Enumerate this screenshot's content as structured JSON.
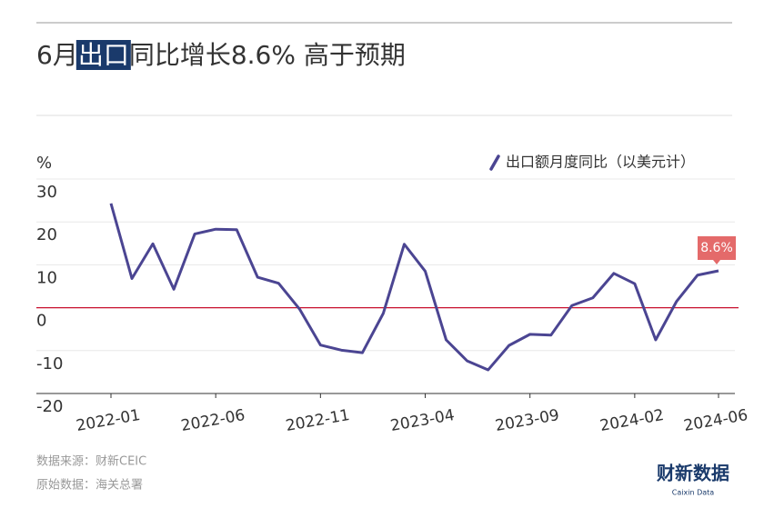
{
  "chart_data": {
    "type": "line",
    "title_parts": [
      "6月",
      "出口",
      "同比增长8.6% 高于预期"
    ],
    "y_unit": "%",
    "categories": [
      "2022-01",
      null,
      null,
      null,
      null,
      "2022-06",
      null,
      null,
      null,
      null,
      "2022-11",
      null,
      null,
      null,
      null,
      "2023-04",
      null,
      null,
      null,
      null,
      "2023-09",
      null,
      null,
      null,
      null,
      "2024-02",
      null,
      null,
      null,
      "2024-06"
    ],
    "series": [
      {
        "name": "出口额月度同比（以美元计）",
        "color": "#4b4592",
        "values": [
          24.3,
          6.8,
          14.9,
          4.3,
          17.2,
          18.3,
          18.2,
          7.1,
          5.7,
          -0.3,
          -8.7,
          -9.9,
          -10.5,
          -1.3,
          14.8,
          8.5,
          -7.5,
          -12.4,
          -14.5,
          -8.8,
          -6.2,
          -6.4,
          0.5,
          2.3,
          8.0,
          5.6,
          -7.5,
          1.5,
          7.6,
          8.6
        ],
        "value_labels": [
          null,
          null,
          null,
          null,
          null,
          null,
          null,
          null,
          null,
          null,
          null,
          null,
          null,
          null,
          null,
          null,
          null,
          null,
          null,
          null,
          null,
          null,
          null,
          null,
          null,
          null,
          null,
          null,
          null,
          "8.6%"
        ]
      }
    ],
    "ylim": [
      -20,
      30
    ],
    "yticks": [
      -20,
      -10,
      0,
      10,
      20,
      30
    ],
    "grid": true,
    "zero_line_color": "#c8102e",
    "notes": [
      "数据来源：财新CEIC",
      "原始数据：海关总署"
    ],
    "logo": {
      "name": "财新数据",
      "sub": "Caixin Data"
    }
  }
}
